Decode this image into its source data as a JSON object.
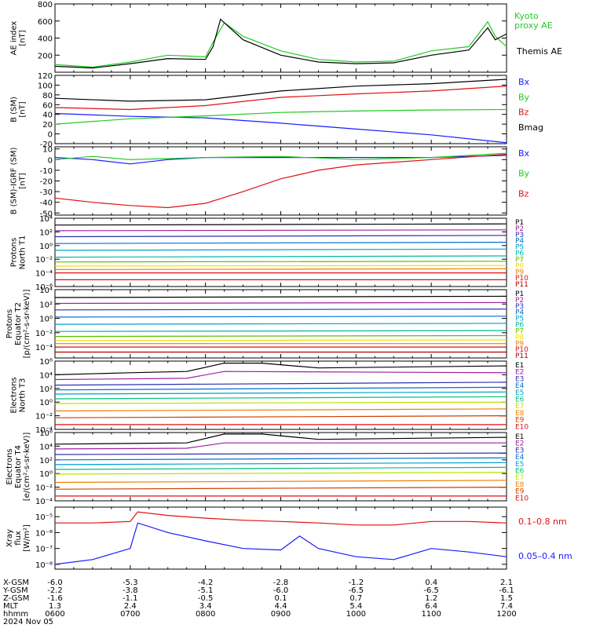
{
  "chart_data": [
    {
      "type": "line",
      "ylabel": "AE index [nT]",
      "yticks": [
        "800",
        "600",
        "400",
        "200"
      ],
      "ylim": [
        0,
        800
      ],
      "legend_placement": "right",
      "series": [
        {
          "name": "Kyoto proxy AE",
          "color": "#22cc22",
          "x": [
            6.0,
            6.5,
            7.0,
            7.5,
            8.0,
            8.1,
            8.25,
            8.5,
            9.0,
            9.5,
            10.0,
            10.5,
            11.0,
            11.5,
            11.75,
            11.85,
            12.0
          ],
          "values": [
            90,
            60,
            120,
            200,
            180,
            350,
            580,
            420,
            250,
            150,
            120,
            130,
            250,
            300,
            590,
            420,
            300
          ]
        },
        {
          "name": "Themis AE",
          "color": "#000000",
          "x": [
            6.0,
            6.5,
            7.0,
            7.5,
            8.0,
            8.1,
            8.2,
            8.5,
            9.0,
            9.5,
            10.0,
            10.5,
            11.0,
            11.5,
            11.75,
            11.85,
            12.0
          ],
          "values": [
            70,
            50,
            100,
            160,
            150,
            300,
            620,
            380,
            200,
            120,
            100,
            110,
            200,
            260,
            520,
            380,
            450
          ]
        }
      ]
    },
    {
      "type": "line",
      "ylabel": "B (SM) [nT]",
      "yticks": [
        "120",
        "100",
        "80",
        "60",
        "40",
        "20",
        "0",
        "-20"
      ],
      "ylim": [
        -20,
        120
      ],
      "series": [
        {
          "name": "Bx",
          "color": "#1a1aff",
          "x": [
            6.0,
            7.0,
            8.0,
            9.0,
            10.0,
            11.0,
            12.0
          ],
          "values": [
            42,
            36,
            33,
            22,
            10,
            -2,
            -18
          ]
        },
        {
          "name": "By",
          "color": "#22cc22",
          "x": [
            6.0,
            7.0,
            8.0,
            9.0,
            10.0,
            11.0,
            12.0
          ],
          "values": [
            20,
            31,
            37,
            44,
            47,
            49,
            50
          ]
        },
        {
          "name": "Bz",
          "color": "#e01010",
          "x": [
            6.0,
            7.0,
            8.0,
            9.0,
            10.0,
            11.0,
            12.0
          ],
          "values": [
            54,
            50,
            58,
            75,
            82,
            88,
            98
          ]
        },
        {
          "name": "Bmag",
          "color": "#000000",
          "x": [
            6.0,
            7.0,
            8.0,
            9.0,
            10.0,
            11.0,
            12.0
          ],
          "values": [
            73,
            67,
            70,
            88,
            98,
            103,
            112
          ]
        }
      ]
    },
    {
      "type": "line",
      "ylabel": "B (SM)-IGRF (SM) [nT]",
      "yticks": [
        "10",
        "0",
        "-10",
        "-20",
        "-30",
        "-40",
        "-50"
      ],
      "ylim": [
        -52,
        12
      ],
      "series": [
        {
          "name": "Bx",
          "color": "#1a1aff",
          "x": [
            6.0,
            6.5,
            7.0,
            7.5,
            8.0,
            9.0,
            10.0,
            11.0,
            12.0
          ],
          "values": [
            2,
            0,
            -4,
            0,
            2,
            2,
            2,
            2,
            4
          ]
        },
        {
          "name": "By",
          "color": "#22cc22",
          "x": [
            6.0,
            6.5,
            7.0,
            7.5,
            8.0,
            9.0,
            10.0,
            11.0,
            12.0
          ],
          "values": [
            0,
            3,
            0,
            1,
            2,
            3,
            0,
            2,
            6
          ]
        },
        {
          "name": "Bz",
          "color": "#e01010",
          "x": [
            6.0,
            6.5,
            7.0,
            7.5,
            8.0,
            8.5,
            9.0,
            9.5,
            10.0,
            11.0,
            12.0
          ],
          "values": [
            -36,
            -40,
            -43,
            -45,
            -41,
            -30,
            -18,
            -10,
            -5,
            0,
            5
          ]
        }
      ]
    },
    {
      "type": "line",
      "ylabel": "Protons North T1",
      "yscale": "log",
      "yticks": [
        "10⁴",
        "10²",
        "10⁰",
        "10⁻²",
        "10⁻⁴",
        "10⁻⁶"
      ],
      "ylim": [
        1e-06,
        10000.0
      ],
      "series": [
        {
          "name": "P1",
          "color": "#000000",
          "x": [
            6,
            12
          ],
          "values": [
            1000,
            1500
          ]
        },
        {
          "name": "P2",
          "color": "#a020a0",
          "x": [
            6,
            12
          ],
          "values": [
            150,
            200
          ]
        },
        {
          "name": "P3",
          "color": "#3030b0",
          "x": [
            6,
            12
          ],
          "values": [
            20,
            30
          ]
        },
        {
          "name": "P4",
          "color": "#0070d0",
          "x": [
            6,
            12
          ],
          "values": [
            2,
            3
          ]
        },
        {
          "name": "P5",
          "color": "#00a0d0",
          "x": [
            6,
            12
          ],
          "values": [
            0.2,
            0.3
          ]
        },
        {
          "name": "P6",
          "color": "#00b8a8",
          "x": [
            6,
            12
          ],
          "values": [
            0.02,
            0.03
          ]
        },
        {
          "name": "P7",
          "color": "#60c000",
          "x": [
            6,
            12
          ],
          "values": [
            0.004,
            0.005
          ]
        },
        {
          "name": "P8",
          "color": "#f0e000",
          "x": [
            6,
            12
          ],
          "values": [
            0.001,
            0.0012
          ]
        },
        {
          "name": "P9",
          "color": "#f08000",
          "x": [
            6,
            12
          ],
          "values": [
            0.0003,
            0.0004
          ]
        },
        {
          "name": "P10",
          "color": "#e01010",
          "x": [
            6,
            12
          ],
          "values": [
            0.0001,
            0.0001
          ]
        },
        {
          "name": "P11",
          "color": "#b00000",
          "x": [
            6,
            12
          ],
          "values": [
            1e-05,
            1e-05
          ]
        }
      ]
    },
    {
      "type": "line",
      "ylabel": "Protons Equator T2 [p/(cm²-s-sr-keV)]",
      "yscale": "log",
      "yticks": [
        "10⁴",
        "10²",
        "10⁰",
        "10⁻²",
        "10⁻⁴"
      ],
      "ylim": [
        3e-06,
        10000.0
      ],
      "series": [
        {
          "name": "P1",
          "color": "#000000",
          "x": [
            6,
            12
          ],
          "values": [
            800,
            1200
          ]
        },
        {
          "name": "P2",
          "color": "#a020a0",
          "x": [
            6,
            12
          ],
          "values": [
            120,
            160
          ]
        },
        {
          "name": "P3",
          "color": "#3030b0",
          "x": [
            6,
            12
          ],
          "values": [
            15,
            20
          ]
        },
        {
          "name": "P4",
          "color": "#0070d0",
          "x": [
            6,
            12
          ],
          "values": [
            1.5,
            2
          ]
        },
        {
          "name": "P5",
          "color": "#00a0d0",
          "x": [
            6,
            12
          ],
          "values": [
            0.15,
            0.2
          ]
        },
        {
          "name": "P6",
          "color": "#00b8a8",
          "x": [
            6,
            12
          ],
          "values": [
            0.015,
            0.02
          ]
        },
        {
          "name": "P7",
          "color": "#60c000",
          "x": [
            6,
            12
          ],
          "values": [
            0.003,
            0.004
          ]
        },
        {
          "name": "P8",
          "color": "#f0e000",
          "x": [
            6,
            12
          ],
          "values": [
            0.0008,
            0.001
          ]
        },
        {
          "name": "P9",
          "color": "#f08000",
          "x": [
            6,
            12
          ],
          "values": [
            0.0003,
            0.0003
          ]
        },
        {
          "name": "P10",
          "color": "#e01010",
          "x": [
            6,
            12
          ],
          "values": [
            0.0001,
            0.0001
          ]
        },
        {
          "name": "P11",
          "color": "#b00000",
          "x": [
            6,
            12
          ],
          "values": [
            2e-05,
            2e-05
          ]
        }
      ]
    },
    {
      "type": "line",
      "ylabel": "Electrons North T3",
      "yscale": "log",
      "yticks": [
        "10⁶",
        "10⁴",
        "10²",
        "10⁰",
        "10⁻²",
        "10⁻⁴"
      ],
      "ylim": [
        0.0001,
        1000000.0
      ],
      "series": [
        {
          "name": "E1",
          "color": "#000000",
          "x": [
            6,
            7,
            7.75,
            8.25,
            8.75,
            9.5,
            12
          ],
          "values": [
            10000,
            20000,
            30000,
            500000,
            500000,
            100000,
            200000
          ]
        },
        {
          "name": "E2",
          "color": "#a020a0",
          "x": [
            6,
            7.75,
            8.25,
            12
          ],
          "values": [
            2000,
            3000,
            30000,
            20000
          ]
        },
        {
          "name": "E3",
          "color": "#3030b0",
          "x": [
            6,
            12
          ],
          "values": [
            300,
            800
          ]
        },
        {
          "name": "E4",
          "color": "#0070d0",
          "x": [
            6,
            12
          ],
          "values": [
            60,
            150
          ]
        },
        {
          "name": "E5",
          "color": "#00a0d0",
          "x": [
            6,
            12
          ],
          "values": [
            15,
            30
          ]
        },
        {
          "name": "E6",
          "color": "#00c080",
          "x": [
            6,
            12
          ],
          "values": [
            3,
            6
          ]
        },
        {
          "name": "E7",
          "color": "#c0e000",
          "x": [
            6,
            12
          ],
          "values": [
            0.6,
            1
          ]
        },
        {
          "name": "E8",
          "color": "#f08000",
          "x": [
            6,
            12
          ],
          "values": [
            0.05,
            0.1
          ]
        },
        {
          "name": "E9",
          "color": "#d04000",
          "x": [
            6,
            12
          ],
          "values": [
            0.005,
            0.01
          ]
        },
        {
          "name": "E10",
          "color": "#e01010",
          "x": [
            6,
            12
          ],
          "values": [
            0.0005,
            0.0005
          ]
        }
      ]
    },
    {
      "type": "line",
      "ylabel": "Electrons Equator T4 [e/(cm²-s-sr-keV)]",
      "yscale": "log",
      "yticks": [
        "10⁶",
        "10⁴",
        "10²",
        "10⁰",
        "10⁻²",
        "10⁻⁴"
      ],
      "ylim": [
        0.0001,
        1000000.0
      ],
      "series": [
        {
          "name": "E1",
          "color": "#000000",
          "x": [
            6,
            7,
            7.75,
            8.25,
            8.75,
            9.5,
            12
          ],
          "values": [
            20000,
            25000,
            30000,
            600000,
            600000,
            100000,
            200000
          ]
        },
        {
          "name": "E2",
          "color": "#a020a0",
          "x": [
            6,
            7.75,
            8.25,
            12
          ],
          "values": [
            4000,
            5000,
            30000,
            30000
          ]
        },
        {
          "name": "E3",
          "color": "#3030b0",
          "x": [
            6,
            12
          ],
          "values": [
            600,
            1000
          ]
        },
        {
          "name": "E4",
          "color": "#0070d0",
          "x": [
            6,
            12
          ],
          "values": [
            100,
            200
          ]
        },
        {
          "name": "E5",
          "color": "#00a0d0",
          "x": [
            6,
            12
          ],
          "values": [
            20,
            40
          ]
        },
        {
          "name": "E6",
          "color": "#00c080",
          "x": [
            6,
            12
          ],
          "values": [
            4,
            8
          ]
        },
        {
          "name": "E7",
          "color": "#c0e000",
          "x": [
            6,
            12
          ],
          "values": [
            0.8,
            1.5
          ]
        },
        {
          "name": "E8",
          "color": "#f08000",
          "x": [
            6,
            12
          ],
          "values": [
            0.05,
            0.1
          ]
        },
        {
          "name": "E9",
          "color": "#d04000",
          "x": [
            6,
            12
          ],
          "values": [
            0.005,
            0.01
          ]
        },
        {
          "name": "E10",
          "color": "#e01010",
          "x": [
            6,
            12
          ],
          "values": [
            0.0005,
            0.0005
          ]
        }
      ]
    },
    {
      "type": "line",
      "ylabel": "Xray flux [W/m²]",
      "yscale": "log",
      "yticks": [
        "10⁻⁵",
        "10⁻⁶",
        "10⁻⁷",
        "10⁻⁸"
      ],
      "ylim": [
        5e-09,
        4e-05
      ],
      "series": [
        {
          "name": "0.1–0.8 nm",
          "color": "#e01010",
          "x": [
            6.0,
            6.5,
            7.0,
            7.1,
            7.5,
            8.0,
            8.5,
            9.0,
            9.5,
            10.0,
            10.5,
            11.0,
            11.5,
            12.0
          ],
          "values": [
            4e-06,
            4e-06,
            5e-06,
            2e-05,
            1.2e-05,
            8e-06,
            6e-06,
            5e-06,
            4e-06,
            3e-06,
            3e-06,
            5e-06,
            5e-06,
            4e-06
          ]
        },
        {
          "name": "0.05–0.4 nm",
          "color": "#1a1aff",
          "x": [
            6.0,
            6.5,
            7.0,
            7.1,
            7.5,
            8.0,
            8.5,
            9.0,
            9.25,
            9.5,
            10.0,
            10.5,
            11.0,
            11.5,
            12.0
          ],
          "values": [
            1e-08,
            2e-08,
            1e-07,
            4e-06,
            1e-06,
            3e-07,
            1e-07,
            8e-08,
            6e-07,
            1e-07,
            3e-08,
            2e-08,
            1e-07,
            6e-08,
            3e-08
          ]
        }
      ]
    }
  ],
  "x_axis": {
    "row_labels": [
      "X-GSM",
      "Y-GSM",
      "Z-GSM",
      "MLT",
      "hhmm",
      "2024 Nov 05"
    ],
    "ticks": [
      {
        "x": 6,
        "xgsm": "-6.0",
        "ygsm": "-2.2",
        "zgsm": "-1.6",
        "mlt": "1.3",
        "hhmm": "0600"
      },
      {
        "x": 7,
        "xgsm": "-5.3",
        "ygsm": "-3.8",
        "zgsm": "-1.1",
        "mlt": "2.4",
        "hhmm": "0700"
      },
      {
        "x": 8,
        "xgsm": "-4.2",
        "ygsm": "-5.1",
        "zgsm": "-0.5",
        "mlt": "3.4",
        "hhmm": "0800"
      },
      {
        "x": 9,
        "xgsm": "-2.8",
        "ygsm": "-6.0",
        "zgsm": "0.1",
        "mlt": "4.4",
        "hhmm": "0900"
      },
      {
        "x": 10,
        "xgsm": "-1.2",
        "ygsm": "-6.5",
        "zgsm": "0.7",
        "mlt": "5.4",
        "hhmm": "1000"
      },
      {
        "x": 11,
        "xgsm": "0.4",
        "ygsm": "-6.5",
        "zgsm": "1.2",
        "mlt": "6.4",
        "hhmm": "1100"
      },
      {
        "x": 12,
        "xgsm": "2.1",
        "ygsm": "-6.1",
        "zgsm": "1.5",
        "mlt": "7.4",
        "hhmm": "1200"
      }
    ]
  }
}
